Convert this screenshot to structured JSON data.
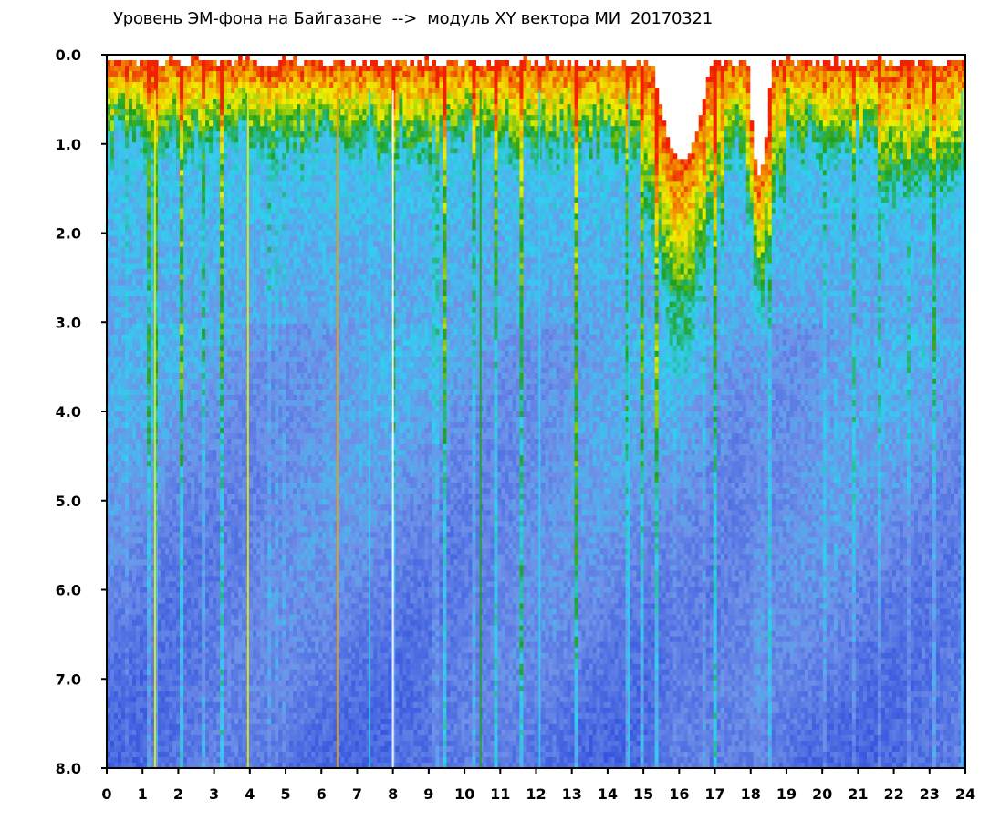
{
  "chart_data": {
    "type": "heatmap",
    "title": "Уровень ЭМ-фона на Байгазане  -->  модуль XY вектора МИ  20170321",
    "xlabel": "",
    "ylabel": "",
    "xlim": [
      0,
      24
    ],
    "ylim": [
      0.0,
      8.0
    ],
    "y_axis_inverted": true,
    "x_tick_labels": [
      "0",
      "1",
      "2",
      "3",
      "4",
      "5",
      "6",
      "7",
      "8",
      "9",
      "10",
      "11",
      "12",
      "13",
      "14",
      "15",
      "16",
      "17",
      "18",
      "19",
      "20",
      "21",
      "22",
      "23",
      "24"
    ],
    "y_tick_labels": [
      "0.0",
      "1.0",
      "2.0",
      "3.0",
      "4.0",
      "5.0",
      "6.0",
      "7.0",
      "8.0"
    ],
    "grid": false,
    "legend": "none",
    "colors": {
      "deep_blue": "#1020d8",
      "blue": "#4060e0",
      "light_blue": "#7090e8",
      "cyan": "#30d0f0",
      "green": "#20a020",
      "yellow": "#f0f000",
      "orange": "#f0a000",
      "red": "#f02000",
      "white": "#ffffff"
    }
  }
}
